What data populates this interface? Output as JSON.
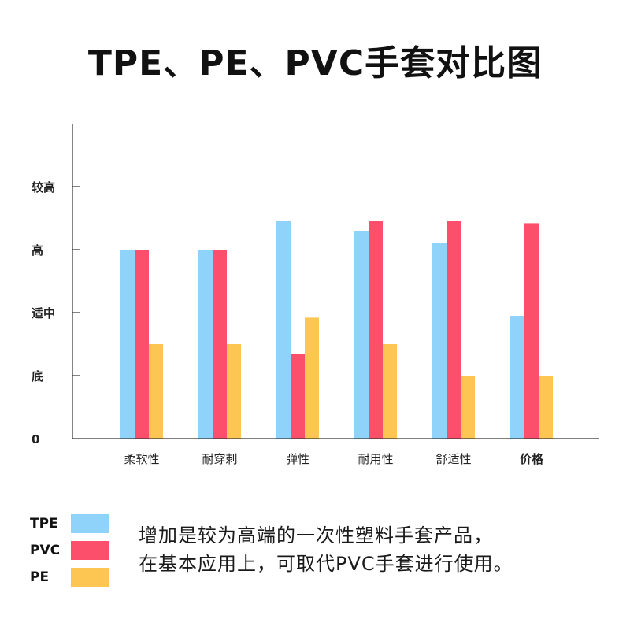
{
  "chart_data": {
    "type": "bar",
    "title": "TPE、PE、PVC手套对比图",
    "categories": [
      "柔软性",
      "耐穿刺",
      "弹性",
      "耐用性",
      "舒适性",
      "价格"
    ],
    "y_ticks": [
      {
        "value": 0,
        "label": "0"
      },
      {
        "value": 1,
        "label": "底"
      },
      {
        "value": 2,
        "label": "适中"
      },
      {
        "value": 3,
        "label": "高"
      },
      {
        "value": 4,
        "label": "较高"
      }
    ],
    "ylim": [
      0,
      5
    ],
    "grid": false,
    "legend": "bottom-left",
    "series": [
      {
        "name": "TPE",
        "color": "#8fd3fb",
        "values": [
          3.0,
          3.0,
          3.45,
          3.3,
          3.1,
          1.95
        ]
      },
      {
        "name": "PVC",
        "color": "#fc4f6c",
        "values": [
          3.0,
          3.0,
          1.35,
          3.45,
          3.45,
          3.42
        ]
      },
      {
        "name": "PE",
        "color": "#fdc653",
        "values": [
          1.5,
          1.5,
          1.92,
          1.5,
          1.0,
          1.0
        ]
      }
    ]
  },
  "note": {
    "line1": "增加是较为高端的一次性塑料手套产品，",
    "line2": "在基本应用上，可取代PVC手套进行使用。"
  }
}
